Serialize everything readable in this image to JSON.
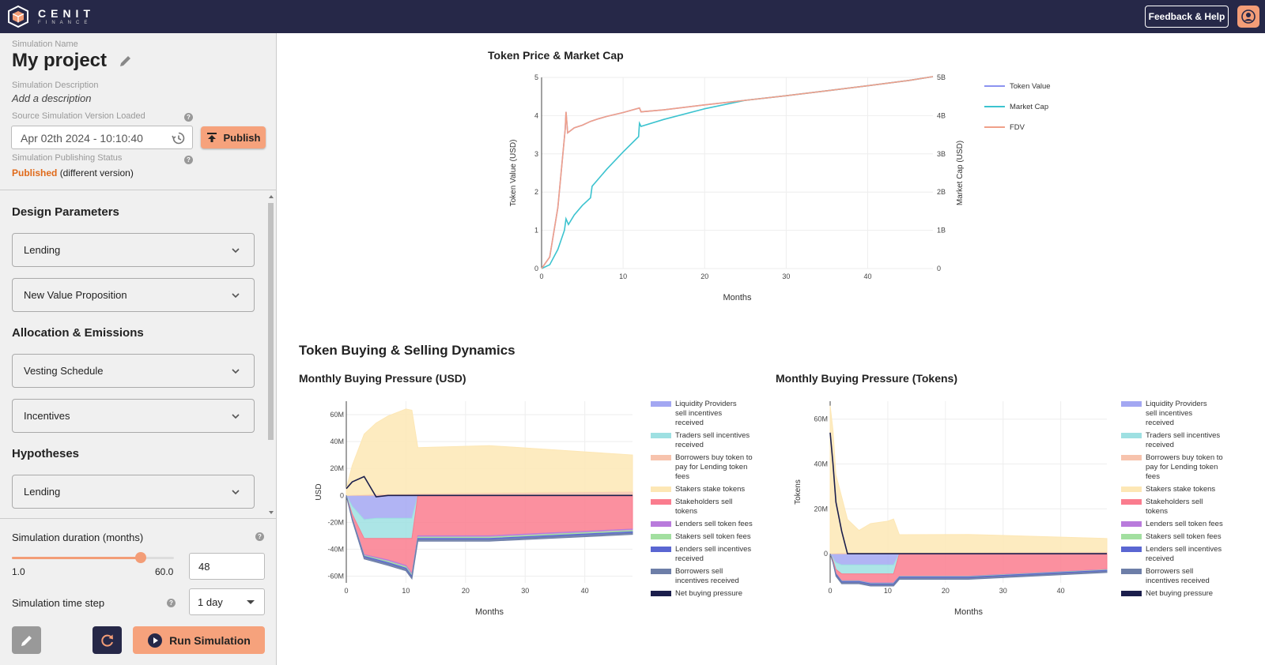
{
  "header": {
    "brand_name": "CENIT",
    "brand_sub": "FINANCE",
    "feedback_label": "Feedback & Help",
    "accent_color": "#f39d77",
    "bar_color": "#262848"
  },
  "sidebar": {
    "sim_name_label": "Simulation Name",
    "project_name": "My project",
    "sim_desc_label": "Simulation Description",
    "desc_placeholder": "Add a description",
    "version_label": "Source Simulation Version Loaded",
    "version_value": "Apr 02th 2024 - 10:10:40",
    "publish_label": "Publish",
    "pub_status_label": "Simulation Publishing Status",
    "pub_status_value": "Published",
    "pub_status_note": "(different version)",
    "sections": [
      {
        "title": "Design Parameters",
        "items": [
          "Lending",
          "New Value Proposition"
        ]
      },
      {
        "title": "Allocation & Emissions",
        "items": [
          "Vesting Schedule",
          "Incentives"
        ]
      },
      {
        "title": "Hypotheses",
        "items": [
          "Lending"
        ]
      }
    ],
    "duration_label": "Simulation duration (months)",
    "duration_min": "1.0",
    "duration_max": "60.0",
    "duration_value": "48",
    "duration_fraction": 0.797,
    "timestep_label": "Simulation time step",
    "timestep_value": "1 day",
    "run_label": "Run Simulation"
  },
  "main": {
    "section_title": "Token Buying & Selling Dynamics"
  },
  "chart_data": [
    {
      "type": "line",
      "title": "Token Price & Market Cap",
      "xlabel": "Months",
      "ylabel": "Token Value (USD)",
      "y2label": "Market Cap (USD)",
      "xlim": [
        0,
        48
      ],
      "ylim": [
        0,
        5
      ],
      "y2lim": [
        0,
        5
      ],
      "xticks": [
        "0",
        "10",
        "20",
        "30",
        "40"
      ],
      "yticks": [
        "0",
        "1",
        "2",
        "3",
        "4",
        "5"
      ],
      "y2ticks": [
        "0",
        "1B",
        "2B",
        "3B",
        "4B",
        "5B"
      ],
      "legend_position": "right",
      "series": [
        {
          "name": "Token Value",
          "color": "#8c93f0",
          "x": [
            0,
            1,
            2,
            2.9,
            3,
            3.2,
            4,
            5,
            6,
            7,
            8,
            10,
            12,
            12.2,
            15,
            20,
            25,
            30,
            35,
            40,
            45,
            48
          ],
          "y": [
            0,
            0.3,
            1.6,
            3.65,
            4.1,
            3.55,
            3.68,
            3.75,
            3.85,
            3.92,
            3.98,
            4.08,
            4.2,
            4.1,
            4.15,
            4.28,
            4.4,
            4.52,
            4.65,
            4.78,
            4.92,
            5.02
          ]
        },
        {
          "name": "Market Cap",
          "color": "#3cc3cf",
          "x": [
            0,
            1,
            2,
            2.8,
            3,
            3.3,
            4,
            5,
            6,
            6.2,
            8,
            10,
            11.9,
            12,
            12.2,
            15,
            20,
            25,
            30,
            35,
            40,
            45,
            48
          ],
          "y": [
            0,
            0.1,
            0.5,
            1.0,
            1.3,
            1.15,
            1.4,
            1.65,
            1.85,
            2.15,
            2.6,
            3.05,
            3.45,
            3.8,
            3.72,
            3.9,
            4.18,
            4.4,
            4.52,
            4.65,
            4.78,
            4.92,
            5.02
          ]
        },
        {
          "name": "FDV",
          "color": "#f0a089",
          "x": [
            0,
            1,
            2,
            2.9,
            3,
            3.2,
            4,
            5,
            6,
            7,
            8,
            10,
            12,
            12.2,
            15,
            20,
            25,
            30,
            35,
            40,
            45,
            48
          ],
          "y": [
            0,
            0.3,
            1.6,
            3.65,
            4.1,
            3.55,
            3.68,
            3.75,
            3.85,
            3.92,
            3.98,
            4.08,
            4.2,
            4.1,
            4.15,
            4.28,
            4.4,
            4.52,
            4.65,
            4.78,
            4.92,
            5.02
          ]
        }
      ]
    },
    {
      "type": "area",
      "title": "Monthly Buying Pressure (USD)",
      "xlabel": "Months",
      "ylabel": "USD",
      "xlim": [
        0,
        48
      ],
      "ylim": [
        -65,
        70
      ],
      "xticks": [
        "0",
        "10",
        "20",
        "30",
        "40"
      ],
      "yticks": [
        "-60M",
        "-40M",
        "-20M",
        "0",
        "20M",
        "40M",
        "60M"
      ],
      "legend_position": "right",
      "x": [
        0,
        1,
        3,
        5,
        7,
        10,
        11,
        12,
        24,
        48
      ],
      "series": [
        {
          "name": "Liquidity Providers sell incentives received",
          "color": "#a3a7f2",
          "values": [
            0,
            -8,
            -18,
            -17,
            -17,
            -17,
            -17,
            0,
            0,
            0
          ]
        },
        {
          "name": "Traders sell incentives received",
          "color": "#9ee0e2",
          "values": [
            0,
            -6,
            -14,
            -15,
            -15,
            -15,
            -15,
            0,
            0,
            0
          ]
        },
        {
          "name": "Borrowers buy token to pay for Lending token fees",
          "color": "#f7c3ad",
          "values": [
            0,
            0.2,
            0.5,
            0.8,
            1,
            1.2,
            1.3,
            1.5,
            2,
            3
          ]
        },
        {
          "name": "Stakers stake tokens",
          "color": "#fde7b5",
          "values": [
            5,
            22,
            45,
            53,
            58,
            63,
            62,
            34,
            35,
            27
          ]
        },
        {
          "name": "Stakeholders sell tokens",
          "color": "#fa7c8e",
          "values": [
            0,
            -3,
            -12,
            -14,
            -16,
            -20,
            -26,
            -30,
            -30,
            -25
          ]
        },
        {
          "name": "Lenders sell token fees",
          "color": "#b97bdc",
          "values": [
            0,
            -0.3,
            -0.6,
            -0.8,
            -1,
            -1,
            -1,
            -1,
            -1,
            -1
          ]
        },
        {
          "name": "Stakers sell token fees",
          "color": "#a2dfa0",
          "values": [
            0,
            -0.3,
            -0.6,
            -0.8,
            -1,
            -1,
            -1,
            -1,
            -1,
            -1
          ]
        },
        {
          "name": "Lenders sell incentives received",
          "color": "#5a66d2",
          "values": [
            0,
            -0.5,
            -1,
            -1,
            -1,
            -1,
            -1,
            -1,
            -1,
            -1
          ]
        },
        {
          "name": "Borrowers sell incentives received",
          "color": "#6d7ea8",
          "values": [
            0,
            -0.5,
            -1,
            -1,
            -1,
            -1,
            -1,
            -1,
            -1,
            -1
          ]
        },
        {
          "name": "Net buying pressure",
          "color": "#1b1e4c",
          "values": [
            5,
            10,
            14,
            -1,
            0,
            0,
            0,
            0,
            0,
            0
          ]
        }
      ]
    },
    {
      "type": "area",
      "title": "Monthly Buying Pressure (Tokens)",
      "xlabel": "Months",
      "ylabel": "Tokens",
      "xlim": [
        0,
        48
      ],
      "ylim": [
        -13,
        68
      ],
      "xticks": [
        "0",
        "10",
        "20",
        "30",
        "40"
      ],
      "yticks": [
        "0",
        "20M",
        "40M",
        "60M"
      ],
      "legend_position": "right",
      "x": [
        0,
        0.5,
        1,
        2,
        3,
        5,
        7,
        10,
        11,
        12,
        24,
        48
      ],
      "series": [
        {
          "name": "Liquidity Providers sell incentives received",
          "color": "#a3a7f2",
          "values": [
            0,
            -2,
            -4,
            -5,
            -5,
            -5,
            -5,
            -5,
            -5,
            0,
            0,
            0
          ]
        },
        {
          "name": "Traders sell incentives received",
          "color": "#9ee0e2",
          "values": [
            0,
            -1,
            -3,
            -4,
            -4,
            -4,
            -4,
            -4,
            -4,
            0,
            0,
            0
          ]
        },
        {
          "name": "Borrowers buy token to pay for Lending token fees",
          "color": "#f7c3ad",
          "values": [
            0,
            0.1,
            0.2,
            0.3,
            0.3,
            0.4,
            0.4,
            0.5,
            0.5,
            0.5,
            0.6,
            0.8
          ]
        },
        {
          "name": "Stakers stake tokens",
          "color": "#fde7b5",
          "values": [
            66,
            55,
            35,
            25,
            15,
            10,
            13,
            14,
            15,
            8,
            8,
            6
          ]
        },
        {
          "name": "Stakeholders sell tokens",
          "color": "#fa7c8e",
          "values": [
            0,
            -1,
            -2,
            -3,
            -3,
            -3,
            -4,
            -4,
            -4,
            -10,
            -10,
            -7
          ]
        },
        {
          "name": "Lenders sell token fees",
          "color": "#b97bdc",
          "values": [
            0,
            0,
            0,
            -0.2,
            -0.2,
            -0.2,
            -0.2,
            -0.2,
            -0.2,
            -0.2,
            -0.2,
            -0.2
          ]
        },
        {
          "name": "Stakers sell token fees",
          "color": "#a2dfa0",
          "values": [
            0,
            0,
            0,
            -0.2,
            -0.2,
            -0.2,
            -0.2,
            -0.2,
            -0.2,
            -0.2,
            -0.2,
            -0.2
          ]
        },
        {
          "name": "Lenders sell incentives received",
          "color": "#5a66d2",
          "values": [
            0,
            0,
            -0.5,
            -0.5,
            -0.5,
            -0.5,
            -0.5,
            -0.5,
            -0.5,
            -0.5,
            -0.5,
            -0.5
          ]
        },
        {
          "name": "Borrowers sell incentives received",
          "color": "#6d7ea8",
          "values": [
            0,
            0,
            -0.5,
            -0.5,
            -0.5,
            -0.5,
            -0.5,
            -0.5,
            -0.5,
            -0.5,
            -0.5,
            -0.5
          ]
        },
        {
          "name": "Net buying pressure",
          "color": "#1b1e4c",
          "values": [
            54,
            40,
            23,
            10,
            0,
            0,
            0,
            0,
            0,
            0,
            0,
            0
          ]
        }
      ]
    }
  ]
}
